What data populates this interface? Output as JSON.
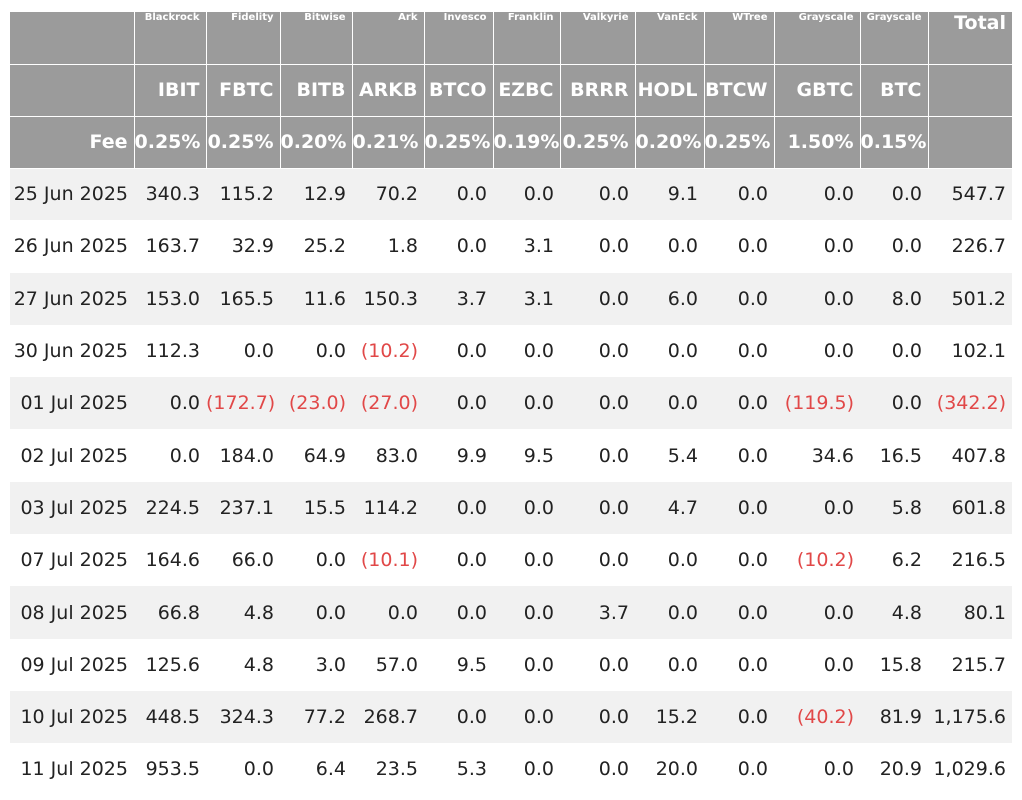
{
  "chart_data": {
    "type": "table",
    "corner_label": "",
    "issuers": [
      "Blackrock",
      "Fidelity",
      "Bitwise",
      "Ark",
      "Invesco",
      "Franklin",
      "Valkyrie",
      "VanEck",
      "WTree",
      "Grayscale",
      "Grayscale"
    ],
    "total_label": "Total",
    "tickers": [
      "IBIT",
      "FBTC",
      "BITB",
      "ARKB",
      "BTCO",
      "EZBC",
      "BRRR",
      "HODL",
      "BTCW",
      "GBTC",
      "BTC"
    ],
    "fee_label": "Fee",
    "fees": [
      "0.25%",
      "0.25%",
      "0.20%",
      "0.21%",
      "0.25%",
      "0.19%",
      "0.25%",
      "0.20%",
      "0.25%",
      "1.50%",
      "0.15%"
    ],
    "negative_color": "#e14848",
    "header_color": "#9b9b9b",
    "rows": [
      {
        "date": "25 Jun 2025",
        "values": [
          "340.3",
          "115.2",
          "12.9",
          "70.2",
          "0.0",
          "0.0",
          "0.0",
          "9.1",
          "0.0",
          "0.0",
          "0.0"
        ],
        "total": "547.7"
      },
      {
        "date": "26 Jun 2025",
        "values": [
          "163.7",
          "32.9",
          "25.2",
          "1.8",
          "0.0",
          "3.1",
          "0.0",
          "0.0",
          "0.0",
          "0.0",
          "0.0"
        ],
        "total": "226.7"
      },
      {
        "date": "27 Jun 2025",
        "values": [
          "153.0",
          "165.5",
          "11.6",
          "150.3",
          "3.7",
          "3.1",
          "0.0",
          "6.0",
          "0.0",
          "0.0",
          "8.0"
        ],
        "total": "501.2"
      },
      {
        "date": "30 Jun 2025",
        "values": [
          "112.3",
          "0.0",
          "0.0",
          "(10.2)",
          "0.0",
          "0.0",
          "0.0",
          "0.0",
          "0.0",
          "0.0",
          "0.0"
        ],
        "total": "102.1"
      },
      {
        "date": "01 Jul 2025",
        "values": [
          "0.0",
          "(172.7)",
          "(23.0)",
          "(27.0)",
          "0.0",
          "0.0",
          "0.0",
          "0.0",
          "0.0",
          "(119.5)",
          "0.0"
        ],
        "total": "(342.2)"
      },
      {
        "date": "02 Jul 2025",
        "values": [
          "0.0",
          "184.0",
          "64.9",
          "83.0",
          "9.9",
          "9.5",
          "0.0",
          "5.4",
          "0.0",
          "34.6",
          "16.5"
        ],
        "total": "407.8"
      },
      {
        "date": "03 Jul 2025",
        "values": [
          "224.5",
          "237.1",
          "15.5",
          "114.2",
          "0.0",
          "0.0",
          "0.0",
          "4.7",
          "0.0",
          "0.0",
          "5.8"
        ],
        "total": "601.8"
      },
      {
        "date": "07 Jul 2025",
        "values": [
          "164.6",
          "66.0",
          "0.0",
          "(10.1)",
          "0.0",
          "0.0",
          "0.0",
          "0.0",
          "0.0",
          "(10.2)",
          "6.2"
        ],
        "total": "216.5"
      },
      {
        "date": "08 Jul 2025",
        "values": [
          "66.8",
          "4.8",
          "0.0",
          "0.0",
          "0.0",
          "0.0",
          "3.7",
          "0.0",
          "0.0",
          "0.0",
          "4.8"
        ],
        "total": "80.1"
      },
      {
        "date": "09 Jul 2025",
        "values": [
          "125.6",
          "4.8",
          "3.0",
          "57.0",
          "9.5",
          "0.0",
          "0.0",
          "0.0",
          "0.0",
          "0.0",
          "15.8"
        ],
        "total": "215.7"
      },
      {
        "date": "10 Jul 2025",
        "values": [
          "448.5",
          "324.3",
          "77.2",
          "268.7",
          "0.0",
          "0.0",
          "0.0",
          "15.2",
          "0.0",
          "(40.2)",
          "81.9"
        ],
        "total": "1,175.6"
      },
      {
        "date": "11 Jul 2025",
        "values": [
          "953.5",
          "0.0",
          "6.4",
          "23.5",
          "5.3",
          "0.0",
          "0.0",
          "20.0",
          "0.0",
          "0.0",
          "20.9"
        ],
        "total": "1,029.6"
      }
    ]
  }
}
